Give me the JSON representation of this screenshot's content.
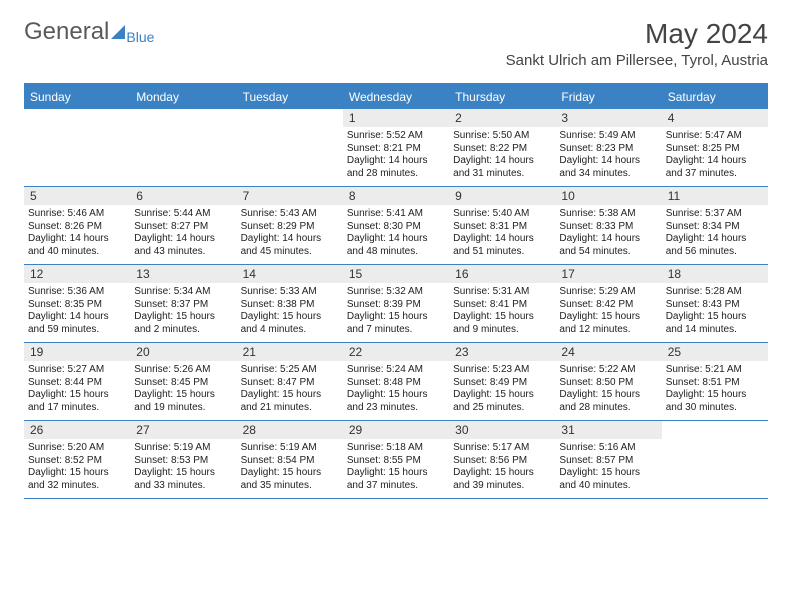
{
  "brand": {
    "general": "General",
    "blue": "Blue"
  },
  "title": "May 2024",
  "location": "Sankt Ulrich am Pillersee, Tyrol, Austria",
  "day_headers": [
    "Sunday",
    "Monday",
    "Tuesday",
    "Wednesday",
    "Thursday",
    "Friday",
    "Saturday"
  ],
  "styling": {
    "header_bg": "#3b82c4",
    "header_text": "#ffffff",
    "daynum_bg": "#ececec",
    "body_text": "#222222",
    "border_color": "#3b82c4",
    "page_bg": "#ffffff",
    "month_title_fontsize": 28,
    "location_fontsize": 15,
    "dayhead_fontsize": 12,
    "cell_fontsize": 10,
    "columns": 7
  },
  "weeks": [
    [
      {
        "n": "",
        "empty": true
      },
      {
        "n": "",
        "empty": true
      },
      {
        "n": "",
        "empty": true
      },
      {
        "n": "1",
        "sr": "Sunrise: 5:52 AM",
        "ss": "Sunset: 8:21 PM",
        "dl": "Daylight: 14 hours and 28 minutes."
      },
      {
        "n": "2",
        "sr": "Sunrise: 5:50 AM",
        "ss": "Sunset: 8:22 PM",
        "dl": "Daylight: 14 hours and 31 minutes."
      },
      {
        "n": "3",
        "sr": "Sunrise: 5:49 AM",
        "ss": "Sunset: 8:23 PM",
        "dl": "Daylight: 14 hours and 34 minutes."
      },
      {
        "n": "4",
        "sr": "Sunrise: 5:47 AM",
        "ss": "Sunset: 8:25 PM",
        "dl": "Daylight: 14 hours and 37 minutes."
      }
    ],
    [
      {
        "n": "5",
        "sr": "Sunrise: 5:46 AM",
        "ss": "Sunset: 8:26 PM",
        "dl": "Daylight: 14 hours and 40 minutes."
      },
      {
        "n": "6",
        "sr": "Sunrise: 5:44 AM",
        "ss": "Sunset: 8:27 PM",
        "dl": "Daylight: 14 hours and 43 minutes."
      },
      {
        "n": "7",
        "sr": "Sunrise: 5:43 AM",
        "ss": "Sunset: 8:29 PM",
        "dl": "Daylight: 14 hours and 45 minutes."
      },
      {
        "n": "8",
        "sr": "Sunrise: 5:41 AM",
        "ss": "Sunset: 8:30 PM",
        "dl": "Daylight: 14 hours and 48 minutes."
      },
      {
        "n": "9",
        "sr": "Sunrise: 5:40 AM",
        "ss": "Sunset: 8:31 PM",
        "dl": "Daylight: 14 hours and 51 minutes."
      },
      {
        "n": "10",
        "sr": "Sunrise: 5:38 AM",
        "ss": "Sunset: 8:33 PM",
        "dl": "Daylight: 14 hours and 54 minutes."
      },
      {
        "n": "11",
        "sr": "Sunrise: 5:37 AM",
        "ss": "Sunset: 8:34 PM",
        "dl": "Daylight: 14 hours and 56 minutes."
      }
    ],
    [
      {
        "n": "12",
        "sr": "Sunrise: 5:36 AM",
        "ss": "Sunset: 8:35 PM",
        "dl": "Daylight: 14 hours and 59 minutes."
      },
      {
        "n": "13",
        "sr": "Sunrise: 5:34 AM",
        "ss": "Sunset: 8:37 PM",
        "dl": "Daylight: 15 hours and 2 minutes."
      },
      {
        "n": "14",
        "sr": "Sunrise: 5:33 AM",
        "ss": "Sunset: 8:38 PM",
        "dl": "Daylight: 15 hours and 4 minutes."
      },
      {
        "n": "15",
        "sr": "Sunrise: 5:32 AM",
        "ss": "Sunset: 8:39 PM",
        "dl": "Daylight: 15 hours and 7 minutes."
      },
      {
        "n": "16",
        "sr": "Sunrise: 5:31 AM",
        "ss": "Sunset: 8:41 PM",
        "dl": "Daylight: 15 hours and 9 minutes."
      },
      {
        "n": "17",
        "sr": "Sunrise: 5:29 AM",
        "ss": "Sunset: 8:42 PM",
        "dl": "Daylight: 15 hours and 12 minutes."
      },
      {
        "n": "18",
        "sr": "Sunrise: 5:28 AM",
        "ss": "Sunset: 8:43 PM",
        "dl": "Daylight: 15 hours and 14 minutes."
      }
    ],
    [
      {
        "n": "19",
        "sr": "Sunrise: 5:27 AM",
        "ss": "Sunset: 8:44 PM",
        "dl": "Daylight: 15 hours and 17 minutes."
      },
      {
        "n": "20",
        "sr": "Sunrise: 5:26 AM",
        "ss": "Sunset: 8:45 PM",
        "dl": "Daylight: 15 hours and 19 minutes."
      },
      {
        "n": "21",
        "sr": "Sunrise: 5:25 AM",
        "ss": "Sunset: 8:47 PM",
        "dl": "Daylight: 15 hours and 21 minutes."
      },
      {
        "n": "22",
        "sr": "Sunrise: 5:24 AM",
        "ss": "Sunset: 8:48 PM",
        "dl": "Daylight: 15 hours and 23 minutes."
      },
      {
        "n": "23",
        "sr": "Sunrise: 5:23 AM",
        "ss": "Sunset: 8:49 PM",
        "dl": "Daylight: 15 hours and 25 minutes."
      },
      {
        "n": "24",
        "sr": "Sunrise: 5:22 AM",
        "ss": "Sunset: 8:50 PM",
        "dl": "Daylight: 15 hours and 28 minutes."
      },
      {
        "n": "25",
        "sr": "Sunrise: 5:21 AM",
        "ss": "Sunset: 8:51 PM",
        "dl": "Daylight: 15 hours and 30 minutes."
      }
    ],
    [
      {
        "n": "26",
        "sr": "Sunrise: 5:20 AM",
        "ss": "Sunset: 8:52 PM",
        "dl": "Daylight: 15 hours and 32 minutes."
      },
      {
        "n": "27",
        "sr": "Sunrise: 5:19 AM",
        "ss": "Sunset: 8:53 PM",
        "dl": "Daylight: 15 hours and 33 minutes."
      },
      {
        "n": "28",
        "sr": "Sunrise: 5:19 AM",
        "ss": "Sunset: 8:54 PM",
        "dl": "Daylight: 15 hours and 35 minutes."
      },
      {
        "n": "29",
        "sr": "Sunrise: 5:18 AM",
        "ss": "Sunset: 8:55 PM",
        "dl": "Daylight: 15 hours and 37 minutes."
      },
      {
        "n": "30",
        "sr": "Sunrise: 5:17 AM",
        "ss": "Sunset: 8:56 PM",
        "dl": "Daylight: 15 hours and 39 minutes."
      },
      {
        "n": "31",
        "sr": "Sunrise: 5:16 AM",
        "ss": "Sunset: 8:57 PM",
        "dl": "Daylight: 15 hours and 40 minutes."
      },
      {
        "n": "",
        "empty": true
      }
    ]
  ]
}
